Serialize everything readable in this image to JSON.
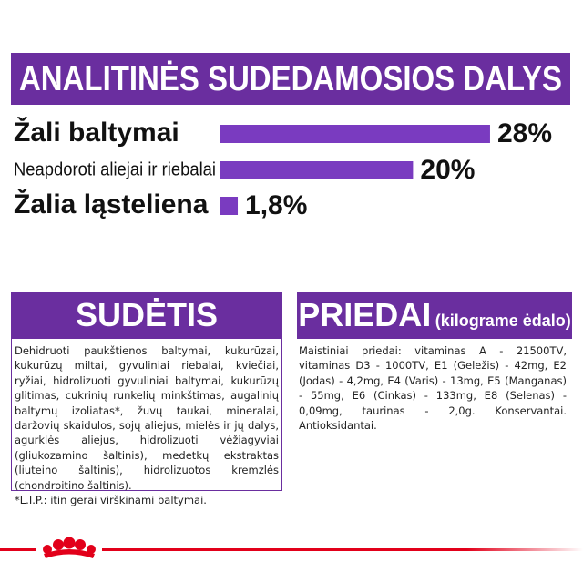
{
  "chart_data": {
    "type": "bar",
    "title": "ANALITINĖS SUDEDAMOSIOS DALYS",
    "categories": [
      "Žali baltymai",
      "Neapdoroti aliejai ir riebalai",
      "Žalia ląsteliena"
    ],
    "values": [
      28,
      20,
      1.8
    ],
    "value_labels": [
      "28%",
      "20%",
      "1,8%"
    ],
    "color": "#7a3bc0"
  },
  "composition": {
    "title": "SUDĖTIS",
    "text": "Dehidruoti paukštienos baltymai, kukurūzai, kukurūzų miltai, gyvuliniai riebalai, kviečiai, ryžiai, hidrolizuoti gyvuliniai baltymai, kukurūzų glitimas, cukrinių runkelių minkštimas, augalinių baltymų izoliatas*, žuvų taukai, mineralai, daržovių skaidulos, sojų aliejus, mielės ir jų dalys, agurklės aliejus, hidrolizuoti vėžiagyviai (gliukozamino šaltinis), medetkų ekstraktas (liuteino šaltinis), hidrolizuotos kremzlės (chondroitino šaltinis).",
    "note": "*L.I.P.: itin gerai virškinami baltymai."
  },
  "additives": {
    "title": "PRIEDAI",
    "subtitle": "(kilograme ėdalo)",
    "text": "Maistiniai priedai: vitaminas A - 21500TV, vitaminas D3 - 1000TV, E1 (Geležis) - 42mg, E2 (Jodas) - 4,2mg, E4 (Varis) - 13mg, E5 (Manganas) - 55mg, E6 (Cinkas) - 133mg, E8 (Selenas) - 0,09mg, taurinas - 2,0g. Konservantai. Antioksidantai."
  }
}
